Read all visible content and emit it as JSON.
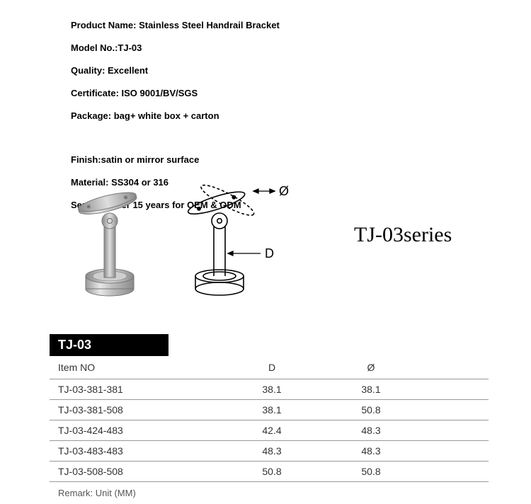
{
  "specs": {
    "left": [
      "Product Name: Stainless Steel Handrail Bracket",
      "Model No.:TJ-03",
      "Quality: Excellent",
      "Certificate: ISO 9001/BV/SGS",
      "Package: bag+ white box + carton"
    ],
    "right": [
      "Finish:satin or mirror surface",
      "Material: SS304 or 316",
      "Service: Over 15 years for OEM & ODM"
    ]
  },
  "series_title": "TJ-03series",
  "diagram_labels": {
    "phi": "Ø",
    "d": "D"
  },
  "table": {
    "title": "TJ-03",
    "columns": [
      "Item NO",
      "D",
      "Ø"
    ],
    "rows": [
      [
        "TJ-03-381-381",
        "38.1",
        "38.1"
      ],
      [
        "TJ-03-381-508",
        "38.1",
        "50.8"
      ],
      [
        "TJ-03-424-483",
        "42.4",
        "48.3"
      ],
      [
        "TJ-03-483-483",
        "48.3",
        "48.3"
      ],
      [
        "TJ-03-508-508",
        "50.8",
        "50.8"
      ]
    ],
    "remark": "Remark: Unit (MM)"
  }
}
